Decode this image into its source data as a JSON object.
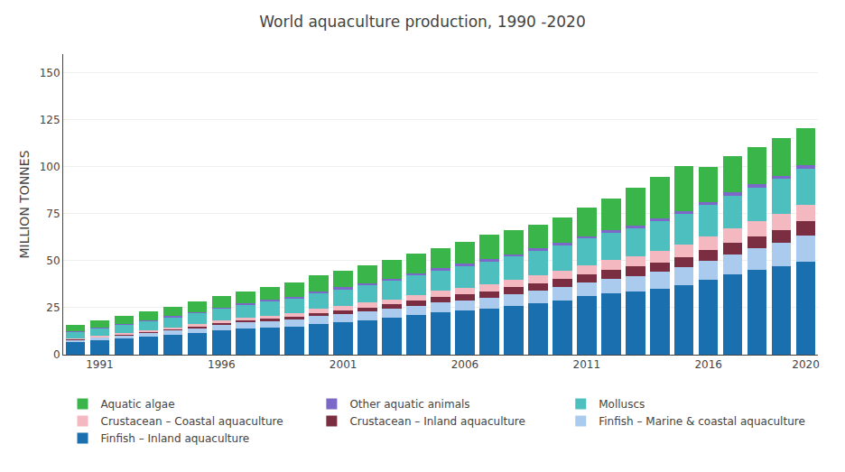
{
  "chart_data": {
    "type": "bar",
    "stacked": true,
    "title": "World aquaculture production, 1990 -2020",
    "ylabel": "MILLION TONNES",
    "x": [
      1990,
      1991,
      1992,
      1993,
      1994,
      1995,
      1996,
      1997,
      1998,
      1999,
      2000,
      2001,
      2002,
      2003,
      2004,
      2005,
      2006,
      2007,
      2008,
      2009,
      2010,
      2011,
      2012,
      2013,
      2014,
      2015,
      2016,
      2017,
      2018,
      2019,
      2020
    ],
    "series": [
      {
        "name": "Finfish – Inland aquaculture",
        "color": "#1a6faf",
        "values": [
          6.5,
          7.5,
          8.5,
          9.5,
          10.5,
          11.5,
          13.0,
          14.0,
          14.5,
          15.0,
          16.5,
          17.5,
          18.5,
          19.5,
          21.0,
          22.5,
          23.5,
          24.5,
          26.0,
          27.5,
          29.0,
          31.0,
          32.5,
          33.5,
          35.0,
          37.0,
          40.0,
          43.0,
          45.0,
          47.0,
          49.5
        ]
      },
      {
        "name": "Finfish – Marine & coastal aquaculture",
        "color": "#aacbee",
        "values": [
          1.5,
          1.8,
          2.0,
          2.2,
          2.5,
          2.8,
          3.0,
          3.2,
          3.5,
          3.8,
          4.0,
          4.2,
          4.5,
          4.8,
          5.0,
          5.2,
          5.5,
          5.8,
          6.0,
          6.5,
          7.0,
          7.5,
          8.0,
          8.5,
          9.0,
          9.5,
          10.0,
          10.5,
          11.5,
          12.5,
          14.0
        ]
      },
      {
        "name": "Crustacean – Inland aquaculture",
        "color": "#7b2d42",
        "values": [
          0.2,
          0.3,
          0.4,
          0.5,
          0.6,
          0.7,
          0.8,
          1.0,
          1.2,
          1.5,
          1.8,
          2.0,
          2.2,
          2.5,
          2.8,
          3.0,
          3.2,
          3.5,
          3.8,
          4.0,
          4.2,
          4.5,
          4.8,
          5.0,
          5.2,
          5.5,
          5.8,
          6.2,
          6.5,
          7.0,
          7.5
        ]
      },
      {
        "name": "Crustacean – Coastal aquaculture",
        "color": "#f4b8c1",
        "values": [
          0.5,
          0.6,
          0.7,
          0.8,
          1.0,
          1.2,
          1.3,
          1.5,
          1.7,
          1.9,
          2.1,
          2.3,
          2.5,
          2.7,
          3.0,
          3.2,
          3.5,
          3.8,
          4.0,
          4.3,
          4.5,
          4.8,
          5.0,
          5.5,
          6.0,
          6.5,
          7.0,
          7.5,
          8.0,
          8.5,
          9.0
        ]
      },
      {
        "name": "Molluscs",
        "color": "#4dbfbf",
        "values": [
          3.5,
          4.0,
          4.5,
          5.0,
          5.5,
          6.0,
          6.5,
          7.0,
          7.5,
          8.0,
          8.5,
          9.0,
          9.5,
          10.0,
          10.5,
          11.0,
          11.5,
          12.0,
          12.5,
          13.0,
          13.5,
          14.0,
          14.5,
          15.0,
          16.0,
          16.5,
          17.0,
          17.5,
          18.0,
          18.5,
          19.0
        ]
      },
      {
        "name": "Other aquatic animals",
        "color": "#7b68c8",
        "values": [
          0.3,
          0.3,
          0.4,
          0.4,
          0.5,
          0.5,
          0.6,
          0.6,
          0.7,
          0.7,
          0.8,
          0.8,
          0.9,
          0.9,
          1.0,
          1.0,
          1.1,
          1.1,
          1.2,
          1.2,
          1.3,
          1.3,
          1.4,
          1.4,
          1.5,
          1.5,
          1.6,
          1.6,
          1.7,
          1.7,
          1.8
        ]
      },
      {
        "name": "Aquatic algae",
        "color": "#3ab54a",
        "values": [
          3.5,
          3.8,
          4.0,
          4.5,
          5.0,
          5.5,
          6.0,
          6.5,
          7.0,
          7.5,
          8.5,
          9.0,
          9.5,
          10.0,
          10.5,
          11.0,
          12.0,
          13.0,
          13.0,
          12.5,
          13.5,
          15.0,
          17.0,
          20.0,
          22.0,
          24.0,
          18.5,
          19.5,
          20.0,
          20.0,
          20.0
        ]
      }
    ],
    "xlim": [
      1989.5,
      2020.5
    ],
    "xticks": [
      1991,
      1996,
      2001,
      2006,
      2011,
      2016,
      2020
    ],
    "ylim": [
      0,
      160
    ],
    "yticks": [
      0,
      25,
      50,
      75,
      100,
      125,
      150
    ],
    "grid": true,
    "legend": "bottom"
  }
}
